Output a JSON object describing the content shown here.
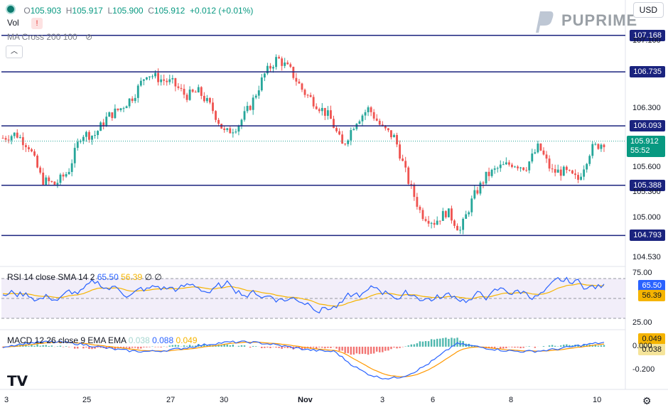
{
  "header": {
    "open_label": "O",
    "open": "105.903",
    "high_label": "H",
    "high": "105.917",
    "low_label": "L",
    "low": "105.900",
    "close_label": "C",
    "close": "105.912",
    "change": "+0.012 (+0.01%)",
    "vol_label": "Vol",
    "ma_label": "MA Cross 200 100",
    "currency": "USD",
    "brand": "PUPRIME"
  },
  "price_levels": [
    {
      "value": 107.168,
      "label": "107.168"
    },
    {
      "value": 106.735,
      "label": "106.735"
    },
    {
      "value": 106.093,
      "label": "106.093"
    },
    {
      "value": 105.388,
      "label": "105.388"
    },
    {
      "value": 104.793,
      "label": "104.793"
    }
  ],
  "current_price": {
    "value": 105.912,
    "label": "105.912",
    "countdown": "55:52"
  },
  "colors": {
    "up": "#26a69a",
    "down": "#ef5350",
    "level": "#1a237e",
    "rsi": "#2962ff",
    "rsi_sma": "#f5b400",
    "macd": "#2962ff",
    "signal": "#ff9800"
  },
  "chart_data": [
    {
      "type": "candlestick",
      "title": "",
      "ylim": [
        104.45,
        107.25
      ],
      "y_ticks": [
        "107.100",
        "106.300",
        "105.600",
        "105.300",
        "105.000",
        "104.530"
      ],
      "x_tick_labels": [
        "3",
        "25",
        "27",
        "30",
        "Nov",
        "3",
        "6",
        "8",
        "10"
      ],
      "path": [
        105.95,
        106.0,
        105.85,
        105.45,
        105.4,
        105.55,
        106.0,
        105.98,
        106.2,
        106.3,
        106.45,
        106.72,
        106.65,
        106.6,
        106.45,
        106.5,
        106.3,
        106.0,
        106.1,
        106.35,
        106.7,
        106.9,
        106.75,
        106.5,
        106.35,
        106.2,
        105.85,
        106.15,
        106.3,
        106.07,
        105.95,
        105.45,
        105.05,
        104.95,
        105.08,
        104.85,
        105.25,
        105.5,
        105.6,
        105.65,
        105.6,
        105.85,
        105.55,
        105.55,
        105.45,
        105.82,
        105.9
      ]
    },
    {
      "type": "line",
      "title": "RSI 14 close SMA 14 2",
      "ylim": [
        20,
        80
      ],
      "y_ticks": [
        "75.00",
        "25.00"
      ],
      "series": [
        {
          "name": "RSI",
          "last": "65.50"
        },
        {
          "name": "SMA",
          "last": "56.39"
        }
      ]
    },
    {
      "type": "line",
      "title": "MACD 12 26 close 9 EMA EMA",
      "ylim": [
        -0.35,
        0.12
      ],
      "y_ticks": [
        "0.000",
        "-0.200"
      ],
      "series": [
        {
          "name": "Histogram",
          "last": "0.038"
        },
        {
          "name": "MACD",
          "last": "0.088"
        },
        {
          "name": "Signal",
          "last": "0.049"
        }
      ]
    }
  ]
}
